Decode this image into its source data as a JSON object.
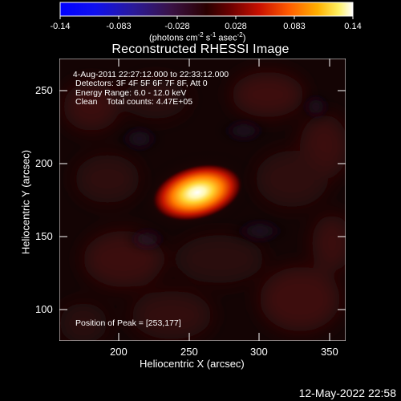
{
  "colorbar": {
    "tick_labels": [
      "-0.14",
      "-0.083",
      "-0.028",
      "0.028",
      "0.083",
      "0.14"
    ],
    "units_prefix": "(photons cm",
    "units_sup1": "-2",
    "units_mid1": " s",
    "units_sup2": "-1",
    "units_mid2": " asec",
    "units_sup3": "-2",
    "units_suffix": ")"
  },
  "title": "Reconstructed RHESSI Image",
  "info": {
    "time_range": " 4-Aug-2011 22:27:12.000 to 22:33:12.000",
    "detectors": "Detectors: 3F 4F 5F 6F 7F 8F, Att 0",
    "energy_range": "Energy Range: 6.0 - 12.0 keV",
    "clean_line": "Clean    Total counts: 4.47E+05",
    "peak_position": "Position of Peak = [253,177]"
  },
  "x_axis": {
    "title": "Heliocentric X (arcsec)",
    "tick_labels": [
      "200",
      "250",
      "300",
      "350"
    ]
  },
  "y_axis": {
    "title": "Heliocentric Y (arcsec)",
    "tick_labels": [
      "250",
      "200",
      "150",
      "100"
    ]
  },
  "footer_date": "12-May-2022 22:58",
  "colors": {
    "background": "#000000",
    "text": "#ffffff"
  }
}
